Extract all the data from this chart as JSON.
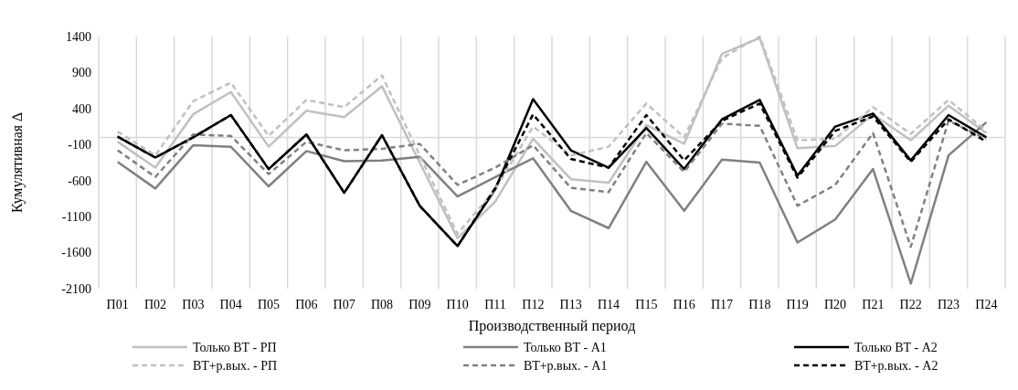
{
  "chart_data": {
    "type": "line",
    "xlabel": "Производственный период",
    "ylabel": "Кумулятивная ∆",
    "categories": [
      "П01",
      "П02",
      "П03",
      "П04",
      "П05",
      "П06",
      "П07",
      "П08",
      "П09",
      "П10",
      "П11",
      "П12",
      "П13",
      "П14",
      "П15",
      "П16",
      "П17",
      "П18",
      "П19",
      "П20",
      "П21",
      "П22",
      "П23",
      "П24"
    ],
    "ylim": [
      -2100,
      1400
    ],
    "yticks": [
      -2100,
      -1600,
      -1100,
      -600,
      -100,
      400,
      900,
      1400
    ],
    "grid": "x",
    "legend": "bottom",
    "series": [
      {
        "name": "Только ВТ - РП",
        "color": "#c0c0c0",
        "line_style": "solid",
        "values": [
          -60,
          -420,
          320,
          630,
          -130,
          370,
          280,
          710,
          -350,
          -1400,
          -890,
          -20,
          -580,
          -630,
          170,
          -90,
          1160,
          1380,
          -150,
          -120,
          320,
          -40,
          440,
          60
        ]
      },
      {
        "name": "Только ВТ - А1",
        "color": "#808080",
        "line_style": "solid",
        "values": [
          -340,
          -710,
          -110,
          -130,
          -680,
          -190,
          -330,
          -320,
          -270,
          -820,
          -550,
          -290,
          -1020,
          -1260,
          -340,
          -1020,
          -310,
          -350,
          -1460,
          -1140,
          -440,
          -2030,
          -250,
          210
        ]
      },
      {
        "name": "Только ВТ - А2",
        "color": "#000000",
        "line_style": "solid",
        "values": [
          10,
          -280,
          0,
          310,
          -440,
          40,
          -770,
          30,
          -950,
          -1510,
          -720,
          530,
          -180,
          -420,
          130,
          -440,
          250,
          520,
          -530,
          150,
          330,
          -320,
          310,
          0
        ]
      },
      {
        "name": "ВТ+р.вых. - РП",
        "color": "#c0c0c0",
        "line_style": "dashed",
        "values": [
          80,
          -250,
          500,
          760,
          20,
          520,
          420,
          860,
          -250,
          -1340,
          -720,
          150,
          -250,
          -130,
          470,
          0,
          1100,
          1400,
          -40,
          -20,
          420,
          50,
          520,
          90
        ]
      },
      {
        "name": "ВТ+р.вых. - А1",
        "color": "#808080",
        "line_style": "dashed",
        "values": [
          -180,
          -550,
          40,
          20,
          -510,
          -60,
          -180,
          -160,
          -90,
          -660,
          -420,
          -110,
          -700,
          -760,
          60,
          -480,
          190,
          160,
          -950,
          -660,
          60,
          -1520,
          230,
          -20
        ]
      },
      {
        "name": "ВТ+р.вых. - А2",
        "color": "#000000",
        "line_style": "dashed",
        "values": [
          10,
          -280,
          0,
          310,
          -440,
          40,
          -770,
          30,
          -950,
          -1510,
          -700,
          320,
          -300,
          -420,
          310,
          -320,
          230,
          470,
          -560,
          90,
          290,
          -340,
          250,
          -60
        ]
      }
    ]
  }
}
